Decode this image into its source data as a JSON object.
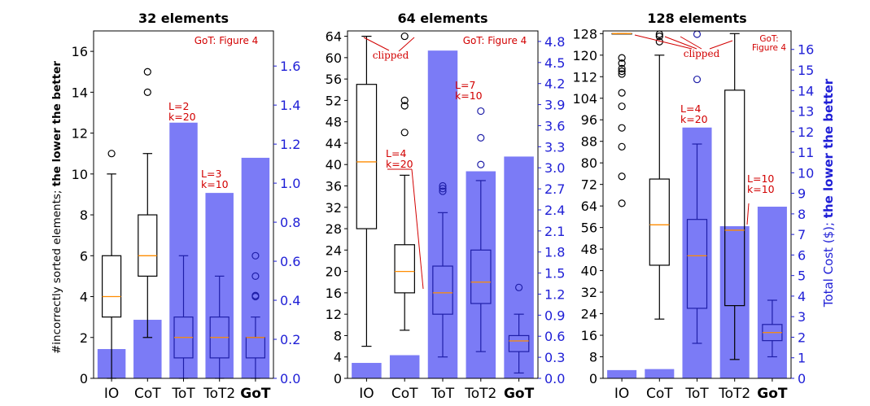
{
  "figure": {
    "left_axis_label": "#incorrectly sorted elements; ",
    "left_axis_label_bold": "the lower the better",
    "right_axis_label": "Total Cost ($); ",
    "right_axis_label_bold": "the lower the better",
    "box_color": "#000000",
    "box_color_overlay": "#1f1fa8",
    "median_color": "#ff8c00",
    "bar_color": "#7b7bf6",
    "right_axis_color": "#1f1fd6",
    "annotation_color": "#d20000"
  },
  "chart_data": [
    {
      "type": "bar",
      "title": "32 elements",
      "categories": [
        "IO",
        "CoT",
        "ToT",
        "ToT2",
        "GoT"
      ],
      "bold_categories": [
        "GoT"
      ],
      "left_ylim": [
        0,
        17
      ],
      "left_ticks": [
        0,
        2,
        4,
        6,
        8,
        10,
        12,
        14,
        16
      ],
      "right_ylim": [
        0,
        1.78
      ],
      "right_ticks": [
        0.0,
        0.2,
        0.4,
        0.6,
        0.8,
        1.0,
        1.2,
        1.4,
        1.6
      ],
      "right_tick_decimals": 1,
      "cost_bars": [
        0.15,
        0.3,
        1.31,
        0.95,
        1.13
      ],
      "boxes": [
        {
          "category": "IO",
          "whisker_low": 0,
          "q1": 3,
          "median": 4,
          "q3": 6,
          "whisker_high": 10,
          "outliers": [
            11
          ]
        },
        {
          "category": "CoT",
          "whisker_low": 2,
          "q1": 5,
          "median": 6,
          "q3": 8,
          "whisker_high": 11,
          "outliers": [
            14,
            15
          ]
        },
        {
          "category": "ToT",
          "whisker_low": 0,
          "q1": 1,
          "median": 2,
          "q3": 3,
          "whisker_high": 6,
          "outliers": []
        },
        {
          "category": "ToT2",
          "whisker_low": 0,
          "q1": 1,
          "median": 2,
          "q3": 3,
          "whisker_high": 5,
          "outliers": []
        },
        {
          "category": "GoT",
          "whisker_low": 0,
          "q1": 1,
          "median": 2,
          "q3": 2,
          "whisker_high": 3,
          "outliers": [
            4,
            4.05,
            5,
            6
          ]
        }
      ],
      "annotations": [
        {
          "text": "GoT: Figure 4"
        },
        {
          "text": "L=2\nk=20"
        },
        {
          "text": "L=3\nk=10"
        }
      ]
    },
    {
      "type": "bar",
      "title": "64 elements",
      "categories": [
        "IO",
        "CoT",
        "ToT",
        "ToT2",
        "GoT"
      ],
      "bold_categories": [
        "GoT"
      ],
      "left_ylim": [
        0,
        65
      ],
      "left_ticks": [
        0,
        4,
        8,
        12,
        16,
        20,
        24,
        28,
        32,
        36,
        40,
        44,
        48,
        52,
        56,
        60,
        64
      ],
      "right_ylim": [
        0,
        4.95
      ],
      "right_ticks": [
        0.0,
        0.3,
        0.6,
        0.9,
        1.2,
        1.5,
        1.8,
        2.1,
        2.4,
        2.7,
        3.0,
        3.3,
        3.6,
        3.9,
        4.2,
        4.5,
        4.8
      ],
      "right_tick_decimals": 1,
      "cost_bars": [
        0.22,
        0.33,
        4.67,
        2.95,
        3.16
      ],
      "boxes": [
        {
          "category": "IO",
          "whisker_low": 6,
          "q1": 28,
          "median": 40.5,
          "q3": 55,
          "whisker_high": 64,
          "outliers": []
        },
        {
          "category": "CoT",
          "whisker_low": 9,
          "q1": 16,
          "median": 20,
          "q3": 25,
          "whisker_high": 38,
          "outliers": [
            46,
            51,
            52,
            64
          ]
        },
        {
          "category": "ToT",
          "whisker_low": 4,
          "q1": 12,
          "median": 16,
          "q3": 21,
          "whisker_high": 31,
          "outliers": [
            35,
            35.5,
            36
          ]
        },
        {
          "category": "ToT2",
          "whisker_low": 5,
          "q1": 14,
          "median": 18,
          "q3": 24,
          "whisker_high": 37,
          "outliers": [
            40,
            45,
            50
          ]
        },
        {
          "category": "GoT",
          "whisker_low": 1,
          "q1": 5,
          "median": 7,
          "q3": 8,
          "whisker_high": 12,
          "outliers": [
            17
          ]
        }
      ],
      "annotations": [
        {
          "text": "GoT: Figure 4"
        },
        {
          "text": "clipped"
        },
        {
          "text": "L=4\nk=20"
        },
        {
          "text": "L=7\nk=10"
        }
      ]
    },
    {
      "type": "bar",
      "title": "128 elements",
      "categories": [
        "IO",
        "CoT",
        "ToT",
        "ToT2",
        "GoT"
      ],
      "bold_categories": [
        "GoT"
      ],
      "left_ylim": [
        0,
        129
      ],
      "left_ticks": [
        0,
        8,
        16,
        24,
        32,
        40,
        48,
        56,
        64,
        72,
        80,
        88,
        96,
        104,
        112,
        120,
        128
      ],
      "right_ylim": [
        0,
        16.9
      ],
      "right_ticks": [
        0,
        1,
        2,
        3,
        4,
        5,
        6,
        7,
        8,
        9,
        10,
        11,
        12,
        13,
        14,
        15,
        16
      ],
      "right_tick_decimals": 0,
      "cost_bars": [
        0.4,
        0.45,
        12.2,
        7.4,
        8.35
      ],
      "boxes": [
        {
          "category": "IO",
          "whisker_low": 128,
          "q1": 128,
          "median": 128,
          "q3": 128,
          "whisker_high": 128,
          "outliers": [
            65,
            75,
            86,
            93,
            101,
            106,
            113,
            114,
            115,
            117,
            119
          ]
        },
        {
          "category": "CoT",
          "whisker_low": 22,
          "q1": 42,
          "median": 57,
          "q3": 74,
          "whisker_high": 120,
          "outliers": [
            125,
            127,
            128
          ]
        },
        {
          "category": "ToT",
          "whisker_low": 13,
          "q1": 26,
          "median": 45.5,
          "q3": 59,
          "whisker_high": 87,
          "outliers": [
            111,
            128
          ]
        },
        {
          "category": "ToT2",
          "whisker_low": 7,
          "q1": 27,
          "median": 55,
          "q3": 107,
          "whisker_high": 128,
          "outliers": []
        },
        {
          "category": "GoT",
          "whisker_low": 8,
          "q1": 14,
          "median": 17,
          "q3": 20,
          "whisker_high": 29,
          "outliers": []
        }
      ],
      "annotations": [
        {
          "text": "GoT:\nFigure 4"
        },
        {
          "text": "clipped"
        },
        {
          "text": "L=4\nk=20"
        },
        {
          "text": "L=10\nk=10"
        }
      ]
    }
  ]
}
